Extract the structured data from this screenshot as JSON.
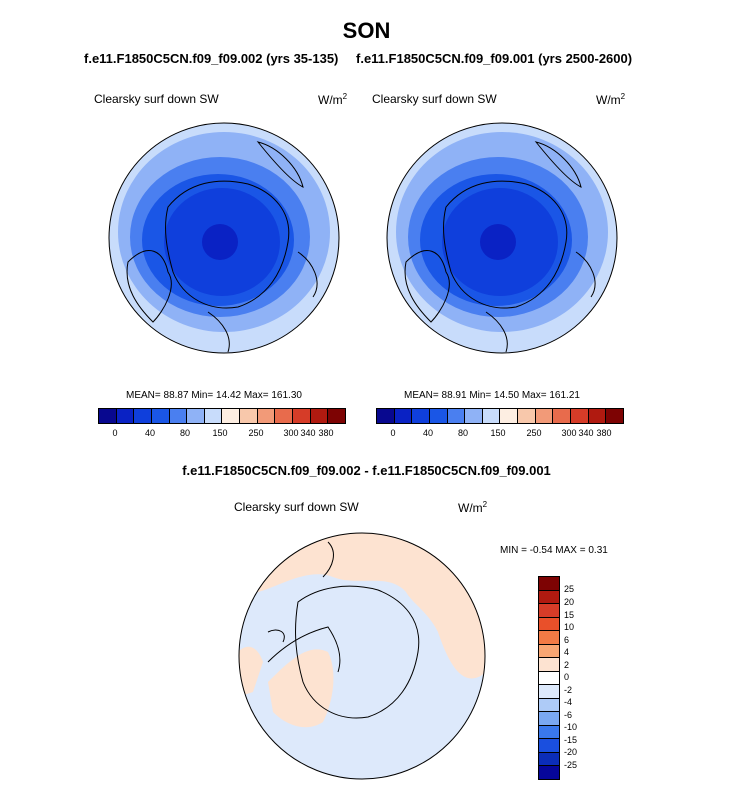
{
  "page": {
    "title": "SON"
  },
  "colors": {
    "abs_scale": [
      "#08088f",
      "#0a22c4",
      "#0f3fdc",
      "#1a56e6",
      "#4a7ff0",
      "#8fb2f6",
      "#c8dcfb",
      "#fdeee2",
      "#f8c8ab",
      "#f29a78",
      "#e86b4c",
      "#d63c28",
      "#b01a10",
      "#7d0303"
    ],
    "diff_scale": [
      "#7d0303",
      "#b01a10",
      "#d63c28",
      "#e9502a",
      "#f27a45",
      "#f8a673",
      "#fde3d1",
      "#ffffff",
      "#dde9fb",
      "#aecbf7",
      "#7aa8f2",
      "#3a78ec",
      "#1a4fdf",
      "#0b2db8",
      "#06069a"
    ]
  },
  "panel_left": {
    "case": "f.e11.F1850C5CN.f09_f09.002 (yrs 35-135)",
    "title": "Clearsky surf down SW",
    "units": "W/m",
    "units_exp": "2",
    "stats": "MEAN=  88.87  Min=  14.42  Max= 161.30",
    "ticks": [
      "0",
      "40",
      "80",
      "150",
      "250",
      "300",
      "340",
      "380"
    ]
  },
  "panel_right": {
    "case": "f.e11.F1850C5CN.f09_f09.001 (yrs 2500-2600)",
    "title": "Clearsky surf down SW",
    "units": "W/m",
    "units_exp": "2",
    "stats": "MEAN=  88.91  Min=  14.50  Max= 161.21",
    "ticks": [
      "0",
      "40",
      "80",
      "150",
      "250",
      "300",
      "340",
      "380"
    ]
  },
  "panel_diff": {
    "case": "f.e11.F1850C5CN.f09_f09.002 - f.e11.F1850C5CN.f09_f09.001",
    "title": "Clearsky surf down SW",
    "units": "W/m",
    "units_exp": "2",
    "stats": "MIN =  -0.54 MAX =   0.31",
    "ticks": [
      "25",
      "20",
      "15",
      "10",
      "6",
      "4",
      "2",
      "0",
      "-2",
      "-4",
      "-6",
      "-10",
      "-15",
      "-20",
      "-25"
    ]
  }
}
